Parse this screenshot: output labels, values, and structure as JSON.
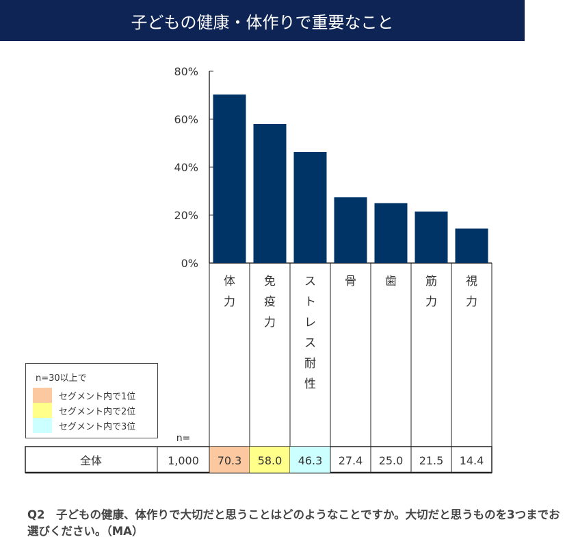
{
  "title": "子どもの健康・体作りで重要なこと",
  "chart_data": {
    "type": "bar",
    "categories": [
      "体力",
      "免疫力",
      "ストレス耐性",
      "骨",
      "歯",
      "筋力",
      "視力"
    ],
    "values": [
      70.3,
      58.0,
      46.3,
      27.4,
      25.0,
      21.5,
      14.4
    ],
    "value_labels": [
      "70.3",
      "58.0",
      "46.3",
      "27.4",
      "25.0",
      "21.5",
      "14.4"
    ],
    "yticks": [
      "0%",
      "20%",
      "40%",
      "60%",
      "80%"
    ],
    "ylim": [
      0,
      80
    ],
    "bar_color": "#003366",
    "rank_colors": [
      "#fbc89f",
      "#ffff8a",
      "#ccffff"
    ]
  },
  "table": {
    "n_label": "n=",
    "row_label": "全体",
    "n_value": "1,000"
  },
  "legend": {
    "header": "n=30以上で",
    "items": [
      {
        "label": "セグメント内で1位",
        "color": "#fbc89f"
      },
      {
        "label": "セグメント内で2位",
        "color": "#ffff8a"
      },
      {
        "label": "セグメント内で3位",
        "color": "#ccffff"
      }
    ]
  },
  "question": "Q2　子どもの健康、体作りで大切だと思うことはどのようなことですか。大切だと思うものを3つまでお選びください。（MA）"
}
